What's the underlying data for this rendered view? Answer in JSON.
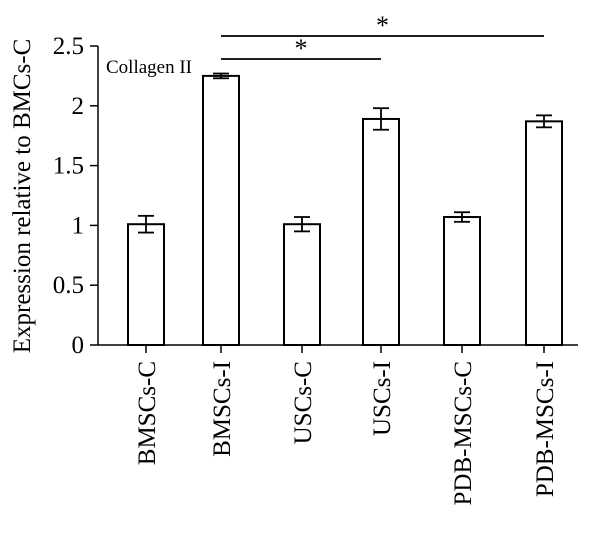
{
  "chart_data": {
    "type": "bar",
    "title": "Collagen II",
    "ylabel": "Expression relative to BMCs-C",
    "xlabel": "",
    "categories": [
      "BMSCs-C",
      "BMSCs-I",
      "USCs-C",
      "USCs-I",
      "PDB-MSCs-C",
      "PDB-MSCs-I"
    ],
    "values": [
      1.01,
      2.25,
      1.01,
      1.89,
      1.07,
      1.87
    ],
    "errors": [
      0.07,
      0.02,
      0.06,
      0.09,
      0.04,
      0.05
    ],
    "ylim": [
      0,
      2.5
    ],
    "yticks": [
      0,
      0.5,
      1,
      1.5,
      2,
      2.5
    ],
    "ytick_labels": [
      "0",
      "0.5",
      "1",
      "1.5",
      "2",
      "2.5"
    ],
    "grid": false,
    "significance": [
      {
        "from": "BMSCs-I",
        "to": "USCs-I",
        "label": "*"
      },
      {
        "from": "BMSCs-I",
        "to": "PDB-MSCs-I",
        "label": "*"
      }
    ],
    "colors": {
      "bar_fill": "#ffffff",
      "bar_stroke": "#000000"
    }
  }
}
